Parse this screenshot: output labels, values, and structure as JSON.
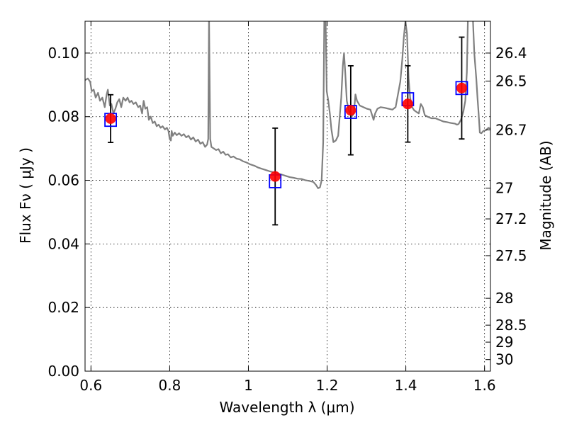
{
  "chart_data": {
    "type": "scatter",
    "xlabel": "Wavelength  λ (μm)",
    "ylabel": "Flux  Fν  ( μJy )",
    "ylabel_right": "Magnitude (AB)",
    "xlim": [
      0.585,
      1.615
    ],
    "ylim": [
      0.0,
      0.11
    ],
    "grid": true,
    "x_ticks": [
      {
        "value": 0.6,
        "label": "0.6"
      },
      {
        "value": 0.8,
        "label": "0.8"
      },
      {
        "value": 1.0,
        "label": "1"
      },
      {
        "value": 1.2,
        "label": "1.2"
      },
      {
        "value": 1.4,
        "label": "1.4"
      },
      {
        "value": 1.6,
        "label": "1.6"
      }
    ],
    "y_ticks": [
      {
        "value": 0.0,
        "label": "0.00"
      },
      {
        "value": 0.02,
        "label": "0.02"
      },
      {
        "value": 0.04,
        "label": "0.04"
      },
      {
        "value": 0.06,
        "label": "0.06"
      },
      {
        "value": 0.08,
        "label": "0.08"
      },
      {
        "value": 0.1,
        "label": "0.10"
      }
    ],
    "right_ticks": [
      {
        "mag": 26.4,
        "label": "26.4"
      },
      {
        "mag": 26.5,
        "label": "26.5"
      },
      {
        "mag": 26.7,
        "label": "26.7"
      },
      {
        "mag": 27.0,
        "label": "27"
      },
      {
        "mag": 27.2,
        "label": "27.2"
      },
      {
        "mag": 27.5,
        "label": "27.5"
      },
      {
        "mag": 28.0,
        "label": "28"
      },
      {
        "mag": 28.5,
        "label": "28.5"
      },
      {
        "mag": 29.0,
        "label": "29"
      },
      {
        "mag": 30.0,
        "label": "30"
      }
    ],
    "sed_model": {
      "color": "#808080",
      "points": [
        [
          0.585,
          0.0915
        ],
        [
          0.592,
          0.092
        ],
        [
          0.598,
          0.091
        ],
        [
          0.602,
          0.088
        ],
        [
          0.607,
          0.0885
        ],
        [
          0.612,
          0.086
        ],
        [
          0.618,
          0.0875
        ],
        [
          0.623,
          0.085
        ],
        [
          0.629,
          0.086
        ],
        [
          0.635,
          0.083
        ],
        [
          0.64,
          0.087
        ],
        [
          0.643,
          0.0885
        ],
        [
          0.648,
          0.0835
        ],
        [
          0.652,
          0.084
        ],
        [
          0.657,
          0.081
        ],
        [
          0.662,
          0.0825
        ],
        [
          0.667,
          0.0845
        ],
        [
          0.672,
          0.0855
        ],
        [
          0.677,
          0.083
        ],
        [
          0.682,
          0.086
        ],
        [
          0.688,
          0.085
        ],
        [
          0.693,
          0.086
        ],
        [
          0.698,
          0.0845
        ],
        [
          0.703,
          0.085
        ],
        [
          0.708,
          0.084
        ],
        [
          0.714,
          0.0845
        ],
        [
          0.72,
          0.083
        ],
        [
          0.725,
          0.0835
        ],
        [
          0.73,
          0.081
        ],
        [
          0.734,
          0.085
        ],
        [
          0.738,
          0.0825
        ],
        [
          0.743,
          0.083
        ],
        [
          0.747,
          0.079
        ],
        [
          0.752,
          0.08
        ],
        [
          0.757,
          0.078
        ],
        [
          0.762,
          0.0785
        ],
        [
          0.767,
          0.077
        ],
        [
          0.772,
          0.0775
        ],
        [
          0.777,
          0.0765
        ],
        [
          0.782,
          0.077
        ],
        [
          0.788,
          0.076
        ],
        [
          0.793,
          0.0765
        ],
        [
          0.797,
          0.0755
        ],
        [
          0.8,
          0.073
        ],
        [
          0.803,
          0.0725
        ],
        [
          0.805,
          0.0755
        ],
        [
          0.808,
          0.074
        ],
        [
          0.813,
          0.075
        ],
        [
          0.818,
          0.0742
        ],
        [
          0.824,
          0.0748
        ],
        [
          0.83,
          0.074
        ],
        [
          0.836,
          0.0745
        ],
        [
          0.842,
          0.0735
        ],
        [
          0.848,
          0.074
        ],
        [
          0.854,
          0.0728
        ],
        [
          0.86,
          0.0735
        ],
        [
          0.866,
          0.0722
        ],
        [
          0.872,
          0.0728
        ],
        [
          0.878,
          0.0715
        ],
        [
          0.884,
          0.072
        ],
        [
          0.89,
          0.0705
        ],
        [
          0.895,
          0.0712
        ],
        [
          0.898,
          0.073
        ],
        [
          0.9,
          0.112
        ],
        [
          0.903,
          0.073
        ],
        [
          0.906,
          0.0705
        ],
        [
          0.912,
          0.07
        ],
        [
          0.918,
          0.0695
        ],
        [
          0.924,
          0.0698
        ],
        [
          0.93,
          0.0685
        ],
        [
          0.936,
          0.069
        ],
        [
          0.942,
          0.068
        ],
        [
          0.948,
          0.0682
        ],
        [
          0.955,
          0.0672
        ],
        [
          0.962,
          0.0675
        ],
        [
          0.97,
          0.0668
        ],
        [
          0.978,
          0.0666
        ],
        [
          0.986,
          0.066
        ],
        [
          0.995,
          0.0656
        ],
        [
          1.005,
          0.065
        ],
        [
          1.015,
          0.0646
        ],
        [
          1.025,
          0.064
        ],
        [
          1.035,
          0.0636
        ],
        [
          1.045,
          0.0632
        ],
        [
          1.055,
          0.0628
        ],
        [
          1.065,
          0.0625
        ],
        [
          1.075,
          0.0622
        ],
        [
          1.085,
          0.0618
        ],
        [
          1.095,
          0.0614
        ],
        [
          1.105,
          0.061
        ],
        [
          1.115,
          0.0608
        ],
        [
          1.125,
          0.0605
        ],
        [
          1.135,
          0.0604
        ],
        [
          1.145,
          0.06
        ],
        [
          1.155,
          0.0598
        ],
        [
          1.165,
          0.0595
        ],
        [
          1.172,
          0.0585
        ],
        [
          1.177,
          0.0575
        ],
        [
          1.182,
          0.0578
        ],
        [
          1.186,
          0.06
        ],
        [
          1.19,
          0.072
        ],
        [
          1.193,
          0.112
        ],
        [
          1.196,
          0.112
        ],
        [
          1.199,
          0.088
        ],
        [
          1.203,
          0.085
        ],
        [
          1.207,
          0.081
        ],
        [
          1.211,
          0.076
        ],
        [
          1.216,
          0.072
        ],
        [
          1.222,
          0.0725
        ],
        [
          1.228,
          0.074
        ],
        [
          1.232,
          0.08
        ],
        [
          1.236,
          0.086
        ],
        [
          1.24,
          0.096
        ],
        [
          1.243,
          0.1
        ],
        [
          1.246,
          0.094
        ],
        [
          1.25,
          0.085
        ],
        [
          1.255,
          0.082
        ],
        [
          1.262,
          0.08
        ],
        [
          1.268,
          0.081
        ],
        [
          1.272,
          0.087
        ],
        [
          1.276,
          0.085
        ],
        [
          1.283,
          0.0835
        ],
        [
          1.292,
          0.083
        ],
        [
          1.301,
          0.0825
        ],
        [
          1.31,
          0.0822
        ],
        [
          1.318,
          0.079
        ],
        [
          1.322,
          0.081
        ],
        [
          1.328,
          0.0825
        ],
        [
          1.336,
          0.083
        ],
        [
          1.346,
          0.0828
        ],
        [
          1.356,
          0.0825
        ],
        [
          1.366,
          0.0822
        ],
        [
          1.374,
          0.083
        ],
        [
          1.38,
          0.087
        ],
        [
          1.386,
          0.091
        ],
        [
          1.391,
          0.098
        ],
        [
          1.395,
          0.105
        ],
        [
          1.399,
          0.11
        ],
        [
          1.403,
          0.106
        ],
        [
          1.407,
          0.092
        ],
        [
          1.411,
          0.086
        ],
        [
          1.416,
          0.083
        ],
        [
          1.421,
          0.082
        ],
        [
          1.427,
          0.0815
        ],
        [
          1.433,
          0.081
        ],
        [
          1.438,
          0.084
        ],
        [
          1.443,
          0.083
        ],
        [
          1.448,
          0.0805
        ],
        [
          1.455,
          0.08
        ],
        [
          1.465,
          0.0795
        ],
        [
          1.475,
          0.0795
        ],
        [
          1.485,
          0.079
        ],
        [
          1.495,
          0.0785
        ],
        [
          1.505,
          0.0783
        ],
        [
          1.515,
          0.078
        ],
        [
          1.525,
          0.0778
        ],
        [
          1.53,
          0.0775
        ],
        [
          1.534,
          0.0777
        ],
        [
          1.54,
          0.079
        ],
        [
          1.546,
          0.0815
        ],
        [
          1.551,
          0.085
        ],
        [
          1.555,
          0.094
        ],
        [
          1.558,
          0.112
        ],
        [
          1.57,
          0.112
        ],
        [
          1.574,
          0.1
        ],
        [
          1.579,
          0.092
        ],
        [
          1.582,
          0.086
        ],
        [
          1.585,
          0.081
        ],
        [
          1.588,
          0.075
        ],
        [
          1.592,
          0.0748
        ],
        [
          1.597,
          0.0755
        ],
        [
          1.604,
          0.0758
        ],
        [
          1.61,
          0.0765
        ],
        [
          1.615,
          0.0762
        ]
      ]
    },
    "observed": {
      "color": "#ff0000",
      "x": [
        0.65,
        1.068,
        1.26,
        1.405,
        1.542
      ],
      "y": [
        0.0794,
        0.0612,
        0.082,
        0.084,
        0.089
      ],
      "err": [
        0.0075,
        0.0152,
        0.014,
        0.012,
        0.016
      ]
    },
    "model_photometry": {
      "color": "#0000ff",
      "x": [
        0.65,
        1.068,
        1.26,
        1.405,
        1.542
      ],
      "y": [
        0.079,
        0.0597,
        0.0815,
        0.0855,
        0.089
      ]
    }
  }
}
